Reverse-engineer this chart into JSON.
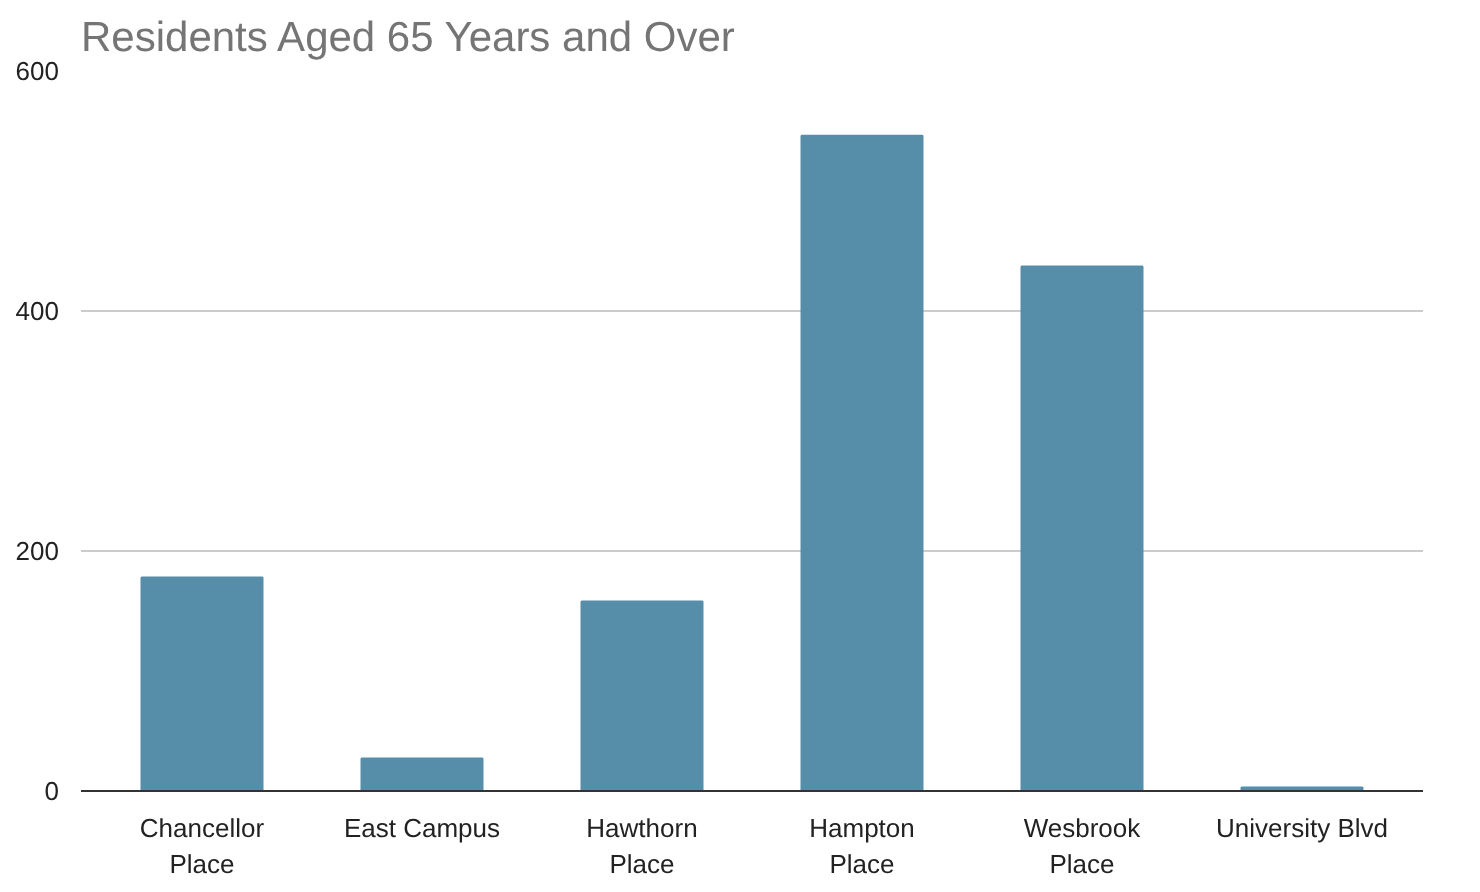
{
  "chart_data": {
    "type": "bar",
    "title": "Residents Aged 65 Years and Over",
    "categories": [
      "Chancellor\nPlace",
      "East Campus",
      "Hawthorn\nPlace",
      "Hampton\nPlace",
      "Wesbrook\nPlace",
      "University Blvd"
    ],
    "values": [
      178,
      27,
      158,
      546,
      437,
      3
    ],
    "color": "#568ea9",
    "ylim": [
      0,
      600
    ],
    "yticks": [
      0,
      200,
      400,
      600
    ],
    "grid": "y"
  }
}
